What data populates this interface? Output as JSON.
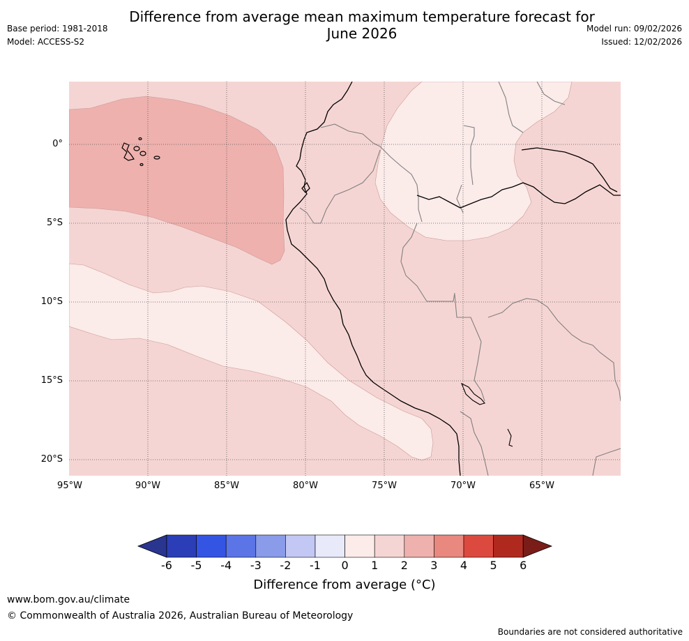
{
  "header": {
    "title_line1": "Difference from average mean maximum temperature forecast for",
    "title_line2": "June 2026",
    "base_period": "Base period: 1981-2018",
    "model": "Model: ACCESS-S2",
    "model_run": "Model run: 09/02/2026",
    "issued": "Issued: 12/02/2026"
  },
  "map": {
    "latitude_labels": [
      "0°",
      "5°S",
      "10°S",
      "15°S",
      "20°S"
    ],
    "longitude_labels": [
      "95°W",
      "90°W",
      "85°W",
      "80°W",
      "75°W",
      "70°W",
      "65°W"
    ],
    "colors": {
      "land_ocean_base": "#f5d5d3",
      "anomaly_2_3": "#eeb1ad",
      "anomaly_1_2": "#f5d5d3",
      "anomaly_0_1": "#fbebe9",
      "coastline": "#000000",
      "border": "#808080",
      "gridline": "#555555"
    }
  },
  "colorbar": {
    "ticks": [
      "-6",
      "-5",
      "-4",
      "-3",
      "-2",
      "-1",
      "0",
      "1",
      "2",
      "3",
      "4",
      "5",
      "6"
    ],
    "colors": [
      "#2a3590",
      "#2b3eb7",
      "#3454e3",
      "#5b75e6",
      "#8a9bea",
      "#c2c8f3",
      "#e8eafa",
      "#fbebe9",
      "#f5d5d3",
      "#eeb1ad",
      "#e8887f",
      "#dc4a3f",
      "#b0291f",
      "#7a1c18"
    ],
    "label": "Difference from average (°C)"
  },
  "footer": {
    "url": "www.bom.gov.au/climate",
    "copyright": "© Commonwealth of Australia 2026, Australian Bureau of Meteorology",
    "note": "Boundaries are not considered authoritative"
  }
}
